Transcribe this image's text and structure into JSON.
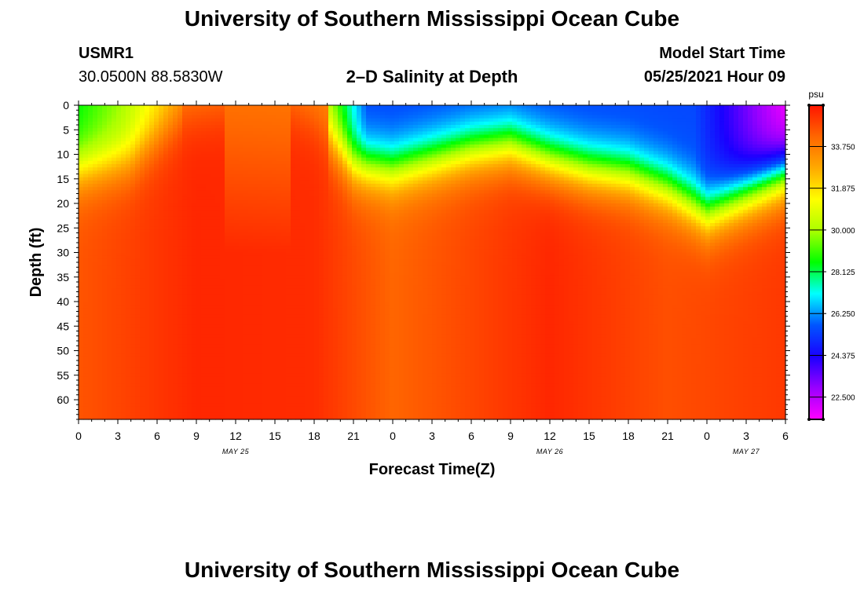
{
  "page": {
    "title_top": "University of Southern Mississippi Ocean Cube",
    "title_bottom": "University of Southern Mississippi Ocean Cube",
    "station": "USMR1",
    "coords": "30.0500N  88.5830W",
    "model_label": "Model Start Time",
    "model_time": "05/25/2021 Hour 09"
  },
  "colors": {
    "scale": [
      "#ff00ff",
      "#9900ff",
      "#1a00ff",
      "#0055ff",
      "#00ffff",
      "#00ff00",
      "#aaff00",
      "#ffff00",
      "#ffaa00",
      "#ff6600",
      "#ff1500"
    ]
  },
  "chart_data": {
    "type": "heatmap",
    "title": "2–D Salinity at Depth",
    "xlabel": "Forecast Time(Z)",
    "ylabel": "Depth (ft)",
    "xlim": [
      0,
      54
    ],
    "ylim": [
      64,
      0
    ],
    "x_ticks": [
      0,
      3,
      6,
      9,
      12,
      15,
      18,
      21,
      24,
      27,
      30,
      33,
      36,
      39,
      42,
      45,
      48,
      51,
      54
    ],
    "x_tick_labels": [
      "0",
      "3",
      "6",
      "9",
      "12",
      "15",
      "18",
      "21",
      "0",
      "3",
      "6",
      "9",
      "12",
      "15",
      "18",
      "21",
      "0",
      "3",
      "6"
    ],
    "date_labels": [
      {
        "x": 12,
        "text": "MAY 25"
      },
      {
        "x": 36,
        "text": "MAY 26"
      },
      {
        "x": 51,
        "text": "MAY 27"
      }
    ],
    "y_ticks": [
      0,
      5,
      10,
      15,
      20,
      25,
      30,
      35,
      40,
      45,
      50,
      55,
      60
    ],
    "y_tick_labels": [
      "0",
      "5",
      "10",
      "15",
      "20",
      "25",
      "30",
      "35",
      "40",
      "45",
      "50",
      "55",
      "60"
    ],
    "colorbar": {
      "unit": "psu",
      "min": 21.5,
      "max": 35.6,
      "ticks": [
        22.5,
        24.375,
        26.25,
        28.125,
        30.0,
        31.875,
        33.75
      ],
      "tick_labels": [
        "22.500",
        "24.375",
        "26.250",
        "28.125",
        "30.000",
        "31.875",
        "33.750"
      ]
    },
    "isohalines": [
      {
        "name": "surface_fresh_layer_depth_ft",
        "x": [
          0,
          4,
          8,
          12,
          16,
          18,
          21,
          24,
          27,
          30,
          33,
          36,
          39,
          42,
          45,
          48,
          51,
          54
        ],
        "y": [
          13,
          11,
          2,
          0,
          0,
          3,
          12,
          13,
          11,
          9,
          8,
          11,
          13,
          14,
          17,
          22,
          18,
          14
        ]
      },
      {
        "name": "bottom_salinity_psu",
        "x": [
          0,
          9,
          18,
          24,
          36,
          45,
          54
        ],
        "y": [
          34.5,
          35.3,
          35.2,
          34.2,
          35.3,
          34.6,
          35.0
        ]
      }
    ]
  }
}
